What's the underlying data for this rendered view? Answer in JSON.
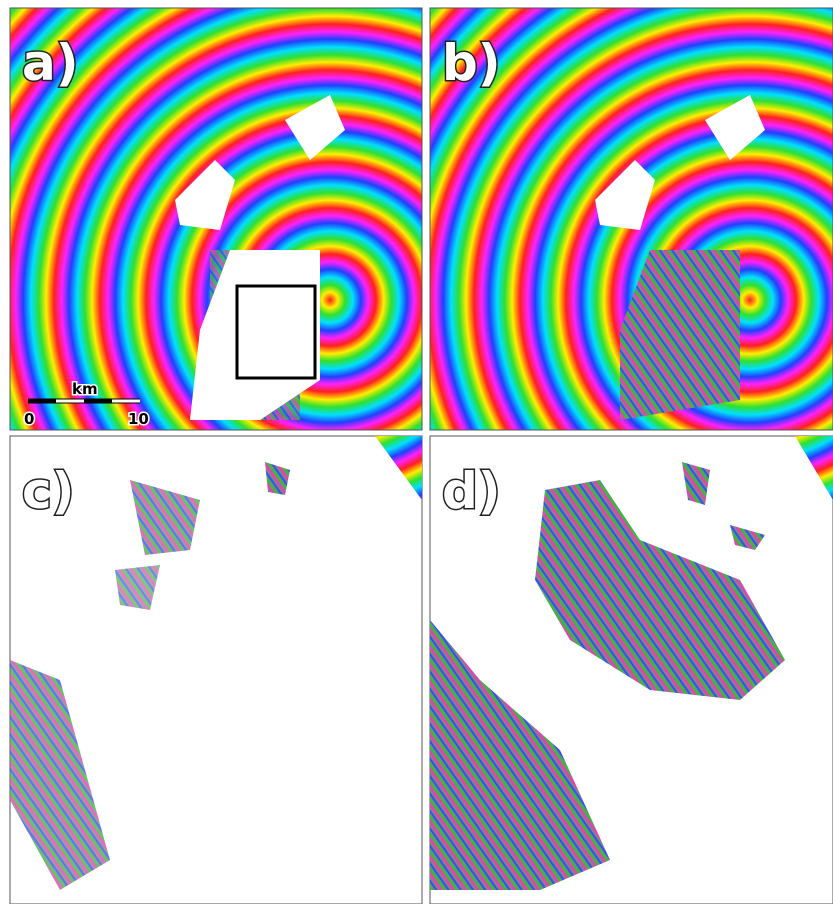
{
  "panels": [
    {
      "label": "a)"
    },
    {
      "label": "b)"
    },
    {
      "label": "c)"
    },
    {
      "label": "d)"
    }
  ],
  "scale_bar": {
    "unit": "km",
    "start": "0",
    "end": "10"
  }
}
